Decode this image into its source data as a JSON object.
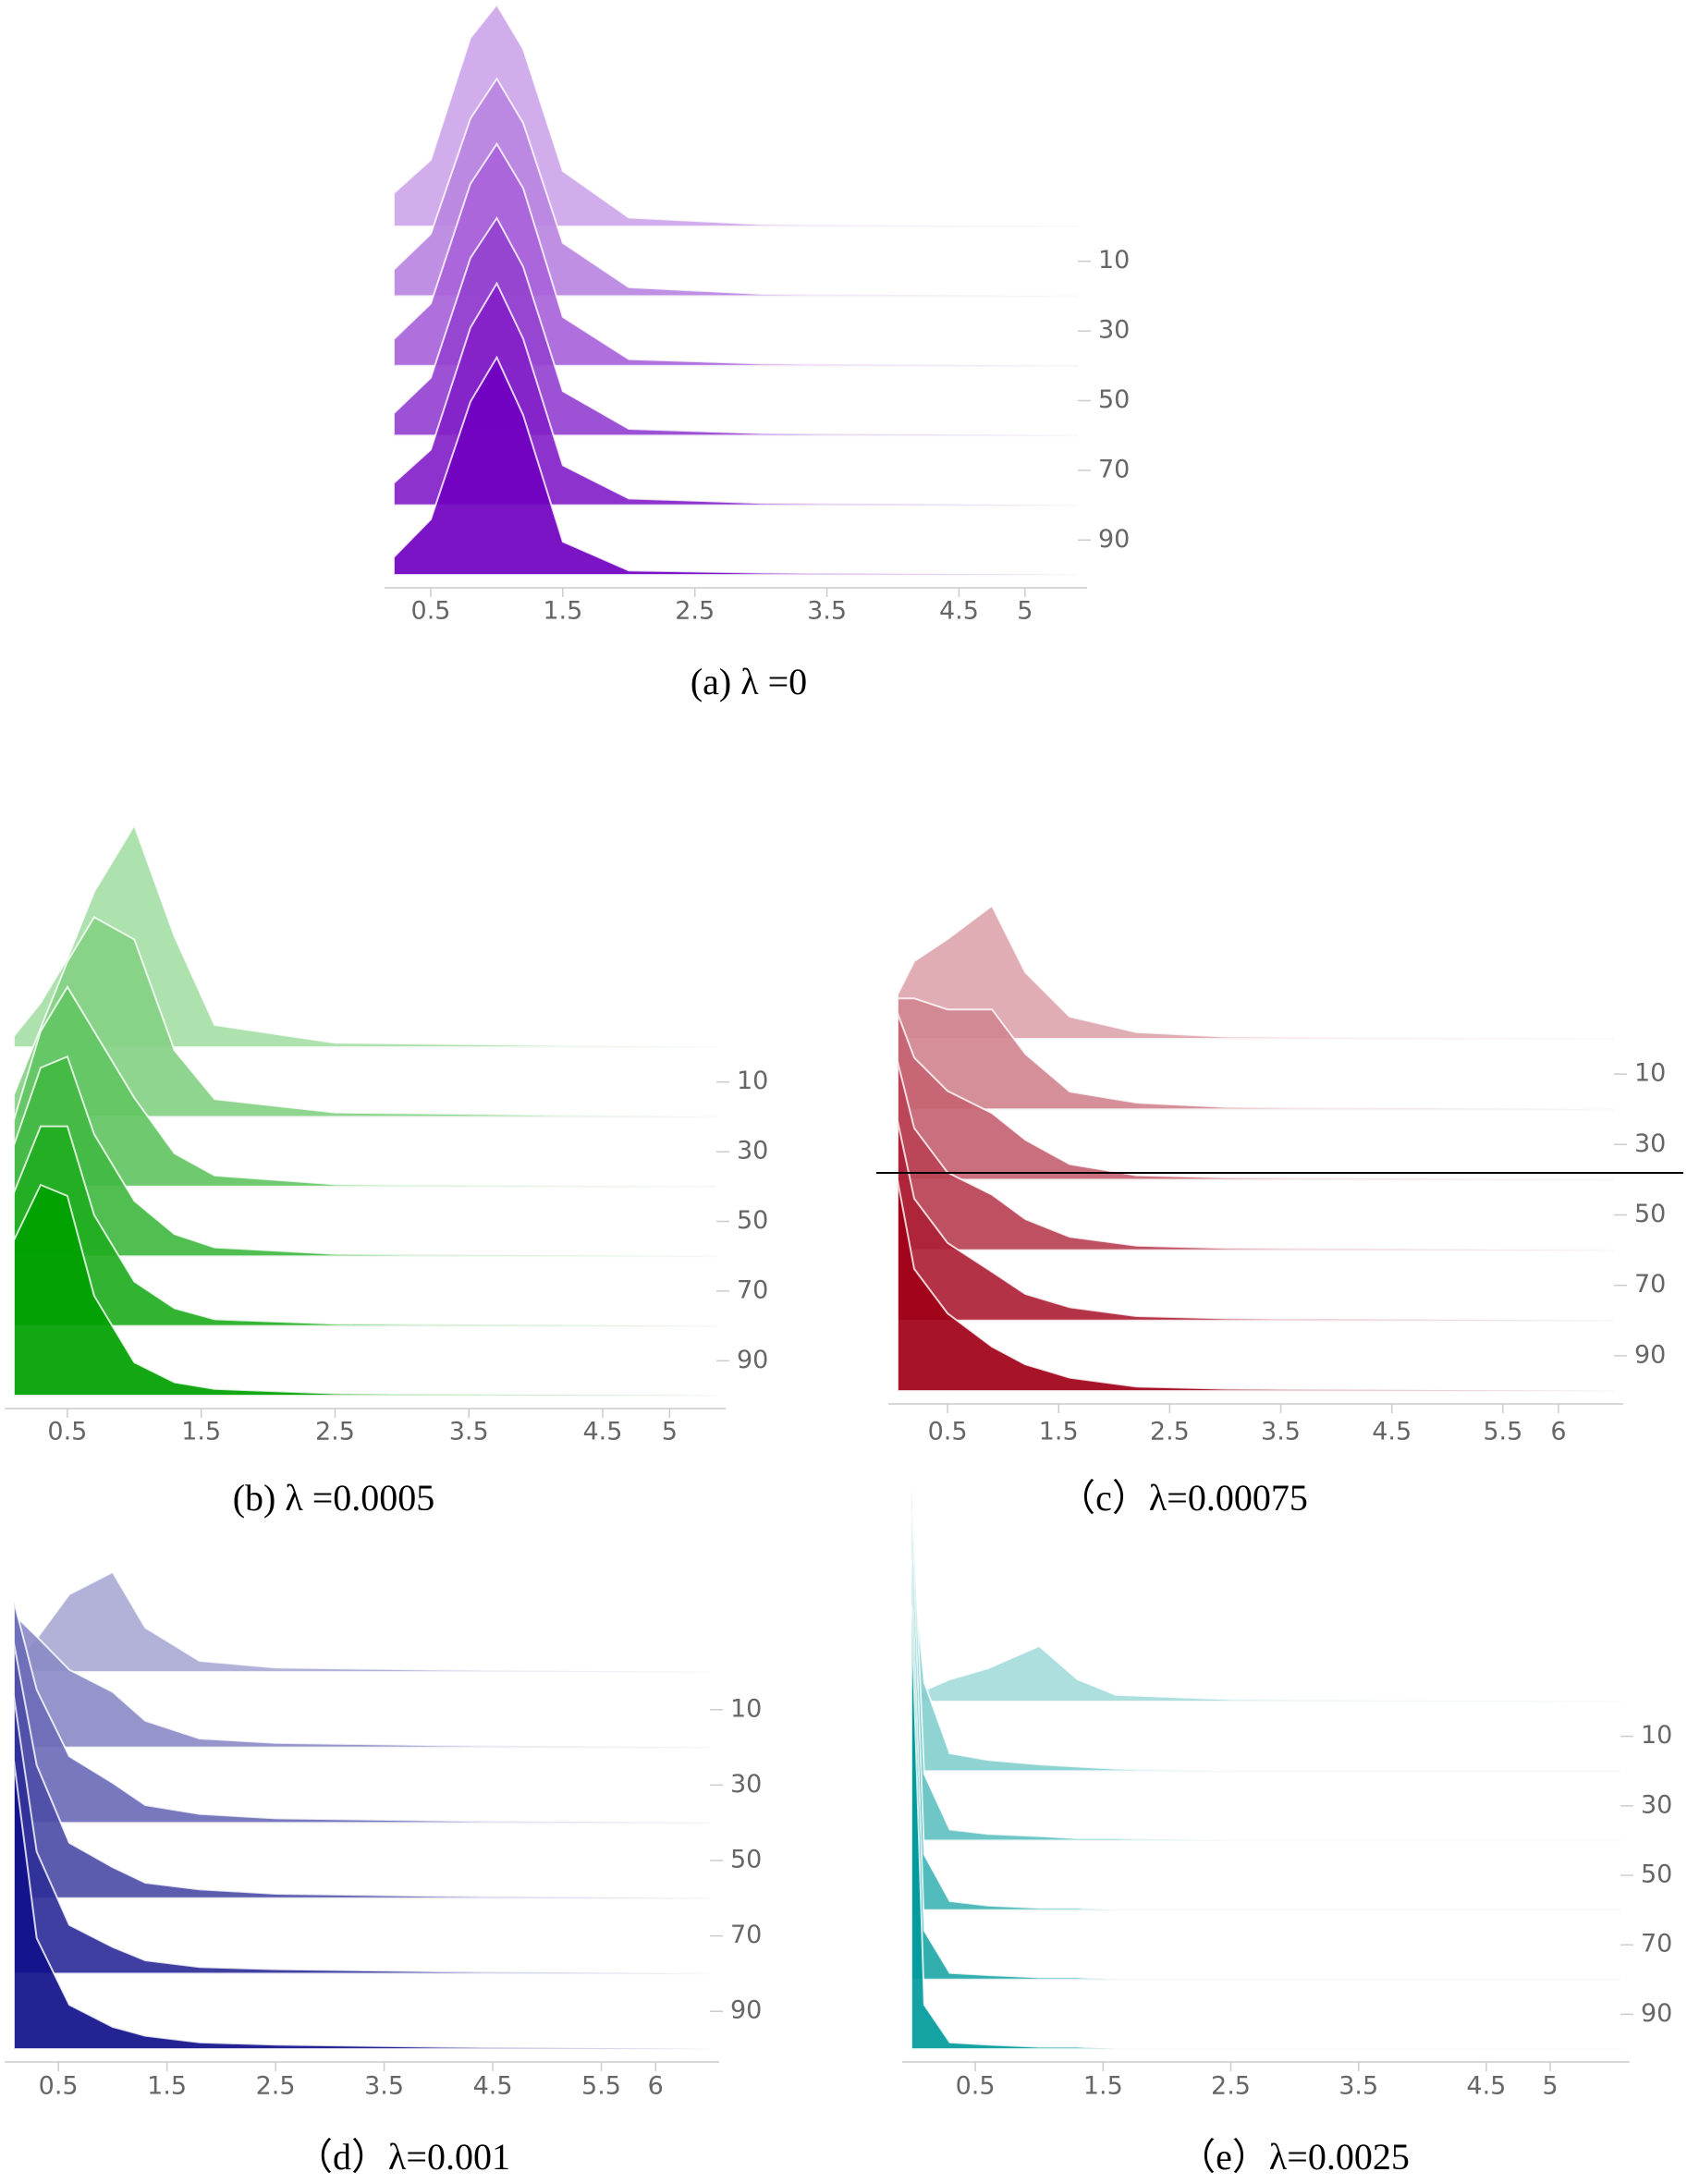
{
  "chart_data": [
    {
      "type": "ridgeline",
      "caption": "(a)  λ =0",
      "color": "#7000c0",
      "xlim": [
        0.22,
        5.4
      ],
      "xticks": [
        0.5,
        1.5,
        2.5,
        3.5,
        4.5,
        5
      ],
      "ylim": [
        0,
        100
      ],
      "yticks": [
        10,
        30,
        50,
        70,
        90
      ],
      "zlim": [
        0,
        100
      ],
      "x": [
        0.22,
        0.5,
        0.8,
        1.0,
        1.2,
        1.5,
        2.0,
        3.0,
        5.4
      ],
      "series": [
        {
          "step": 0,
          "values": [
            15,
            30,
            85,
            100,
            80,
            25,
            4,
            1,
            0
          ]
        },
        {
          "step": 20,
          "values": [
            12,
            28,
            80,
            98,
            78,
            24,
            4,
            1,
            0
          ]
        },
        {
          "step": 40,
          "values": [
            12,
            28,
            82,
            100,
            80,
            22,
            3,
            1,
            0
          ]
        },
        {
          "step": 60,
          "values": [
            10,
            26,
            80,
            98,
            76,
            20,
            3,
            1,
            0
          ]
        },
        {
          "step": 80,
          "values": [
            10,
            25,
            80,
            100,
            75,
            18,
            3,
            1,
            0
          ]
        },
        {
          "step": 100,
          "values": [
            8,
            25,
            78,
            98,
            72,
            15,
            2,
            1,
            0
          ]
        }
      ]
    },
    {
      "type": "ridgeline",
      "caption": "(b)  λ =0.0005",
      "color": "#00a000",
      "xlim": [
        0.1,
        5.35
      ],
      "xticks": [
        0.5,
        1.5,
        2.5,
        3.5,
        4.5,
        5
      ],
      "ylim": [
        0,
        100
      ],
      "yticks": [
        10,
        30,
        50,
        70,
        90
      ],
      "zlim": [
        0,
        100
      ],
      "x": [
        0.1,
        0.3,
        0.5,
        0.7,
        1.0,
        1.3,
        1.6,
        2.5,
        5.35
      ],
      "series": [
        {
          "step": 0,
          "values": [
            5,
            20,
            40,
            70,
            100,
            50,
            10,
            2,
            0
          ]
        },
        {
          "step": 20,
          "values": [
            10,
            40,
            70,
            90,
            80,
            30,
            8,
            2,
            0
          ]
        },
        {
          "step": 40,
          "values": [
            30,
            70,
            90,
            70,
            40,
            15,
            5,
            1,
            0
          ]
        },
        {
          "step": 60,
          "values": [
            50,
            85,
            90,
            55,
            25,
            10,
            4,
            1,
            0
          ]
        },
        {
          "step": 80,
          "values": [
            60,
            90,
            90,
            50,
            20,
            8,
            3,
            1,
            0
          ]
        },
        {
          "step": 100,
          "values": [
            70,
            95,
            90,
            45,
            15,
            6,
            3,
            1,
            0
          ]
        }
      ]
    },
    {
      "type": "ridgeline",
      "caption": "（c）λ=0.00075",
      "color": "#a00018",
      "xlim": [
        0.05,
        6.5
      ],
      "xticks": [
        0.5,
        1.5,
        2.5,
        3.5,
        4.5,
        5.5,
        6
      ],
      "ylim": [
        0,
        100
      ],
      "yticks": [
        10,
        30,
        50,
        70,
        90
      ],
      "zlim": [
        0,
        100
      ],
      "x": [
        0.05,
        0.2,
        0.5,
        0.9,
        1.2,
        1.6,
        2.2,
        3.0,
        6.5
      ],
      "series": [
        {
          "step": 0,
          "values": [
            20,
            35,
            45,
            60,
            30,
            10,
            3,
            1,
            0
          ]
        },
        {
          "step": 20,
          "values": [
            50,
            50,
            45,
            45,
            25,
            8,
            3,
            1,
            0
          ]
        },
        {
          "step": 40,
          "values": [
            75,
            55,
            40,
            30,
            18,
            7,
            2,
            1,
            0
          ]
        },
        {
          "step": 60,
          "values": [
            85,
            55,
            35,
            25,
            14,
            6,
            2,
            1,
            0
          ]
        },
        {
          "step": 80,
          "values": [
            90,
            55,
            35,
            22,
            12,
            6,
            2,
            1,
            0
          ]
        },
        {
          "step": 100,
          "values": [
            95,
            55,
            35,
            20,
            12,
            6,
            2,
            1,
            0
          ]
        }
      ]
    },
    {
      "type": "ridgeline",
      "caption": "（d）λ=0.001",
      "color": "#10108a",
      "xlim": [
        0.09,
        6.5
      ],
      "xticks": [
        0.5,
        1.5,
        2.5,
        3.5,
        4.5,
        5.5,
        6
      ],
      "ylim": [
        0,
        100
      ],
      "yticks": [
        10,
        30,
        50,
        70,
        90
      ],
      "zlim": [
        0,
        100
      ],
      "x": [
        0.09,
        0.3,
        0.6,
        1.0,
        1.3,
        1.8,
        2.5,
        4,
        6.5
      ],
      "series": [
        {
          "step": 0,
          "values": [
            5,
            15,
            35,
            45,
            20,
            5,
            2,
            1,
            0
          ]
        },
        {
          "step": 20,
          "values": [
            60,
            50,
            35,
            25,
            12,
            4,
            2,
            1,
            0
          ]
        },
        {
          "step": 40,
          "values": [
            100,
            60,
            30,
            18,
            8,
            4,
            2,
            1,
            0
          ]
        },
        {
          "step": 60,
          "values": [
            115,
            60,
            25,
            14,
            7,
            4,
            2,
            1,
            0
          ]
        },
        {
          "step": 80,
          "values": [
            125,
            55,
            22,
            12,
            6,
            3,
            2,
            1,
            0
          ]
        },
        {
          "step": 100,
          "values": [
            130,
            50,
            20,
            10,
            6,
            3,
            2,
            1,
            0
          ]
        }
      ]
    },
    {
      "type": "ridgeline",
      "caption": "（e）λ=0.0025",
      "color": "#009a9a",
      "xlim": [
        0,
        5.55
      ],
      "xticks": [
        0.5,
        1.5,
        2.5,
        3.5,
        4.5,
        5
      ],
      "ylim": [
        0,
        100
      ],
      "yticks": [
        10,
        30,
        50,
        70,
        90
      ],
      "zlim": [
        0,
        100
      ],
      "x": [
        0,
        0.1,
        0.3,
        0.6,
        1.0,
        1.3,
        1.6,
        2.5,
        5.55
      ],
      "series": [
        {
          "step": 0,
          "values": [
            0,
            5,
            10,
            15,
            25,
            10,
            3,
            1,
            0
          ]
        },
        {
          "step": 20,
          "values": [
            100,
            40,
            8,
            5,
            3,
            2,
            1,
            0,
            0
          ]
        },
        {
          "step": 40,
          "values": [
            160,
            30,
            5,
            3,
            2,
            1,
            1,
            0,
            0
          ]
        },
        {
          "step": 60,
          "values": [
            180,
            25,
            4,
            2,
            1,
            1,
            0,
            0,
            0
          ]
        },
        {
          "step": 80,
          "values": [
            190,
            22,
            3,
            2,
            1,
            1,
            0,
            0,
            0
          ]
        },
        {
          "step": 100,
          "values": [
            200,
            20,
            3,
            2,
            1,
            1,
            0,
            0,
            0
          ]
        }
      ]
    }
  ]
}
